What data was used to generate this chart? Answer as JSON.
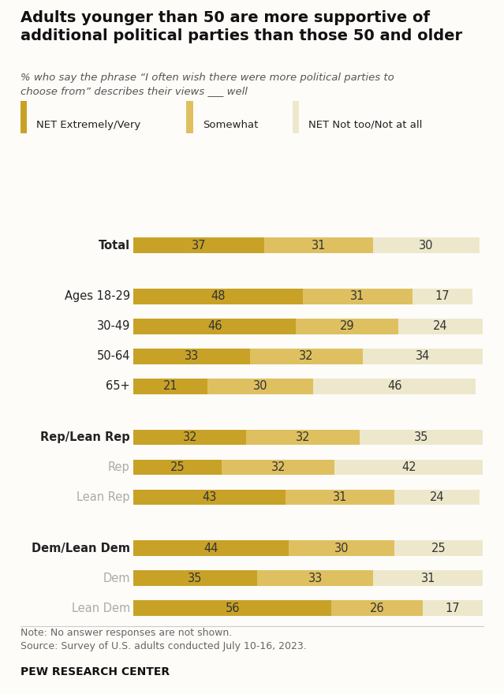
{
  "title": "Adults younger than 50 are more supportive of\nadditional political parties than those 50 and older",
  "subtitle": "% who say the phrase “I often wish there were more political parties to\nchoose from” describes their views ___ well",
  "legend_labels": [
    "NET Extremely/Very",
    "Somewhat",
    "NET Not too/Not at all"
  ],
  "colors": [
    "#c8a227",
    "#dfc060",
    "#ede8cc"
  ],
  "categories": [
    "Total",
    "Ages 18-29",
    "30-49",
    "50-64",
    "65+",
    "Rep/Lean Rep",
    "Rep",
    "Lean Rep",
    "Dem/Lean Dem",
    "Dem",
    "Lean Dem"
  ],
  "bold_categories": [
    "Total",
    "Rep/Lean Rep",
    "Dem/Lean Dem"
  ],
  "gray_categories": [
    "Rep",
    "Lean Rep",
    "Dem",
    "Lean Dem"
  ],
  "values": [
    [
      37,
      31,
      30
    ],
    [
      48,
      31,
      17
    ],
    [
      46,
      29,
      24
    ],
    [
      33,
      32,
      34
    ],
    [
      21,
      30,
      46
    ],
    [
      32,
      32,
      35
    ],
    [
      25,
      32,
      42
    ],
    [
      43,
      31,
      24
    ],
    [
      44,
      30,
      25
    ],
    [
      35,
      33,
      31
    ],
    [
      56,
      26,
      17
    ]
  ],
  "note": "Note: No answer responses are not shown.\nSource: Survey of U.S. adults conducted July 10-16, 2023.",
  "footer": "PEW RESEARCH CENTER",
  "background_color": "#fdfcf9",
  "bar_height": 0.52,
  "font_color": "#222222",
  "gray_color": "#aaaaaa"
}
